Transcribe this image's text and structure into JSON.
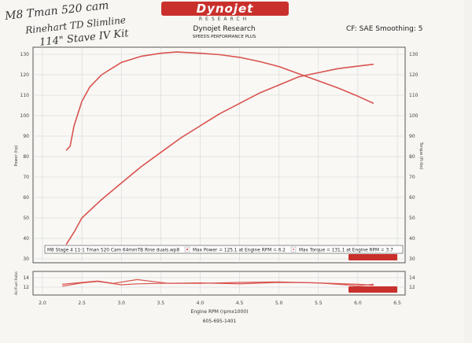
{
  "handwritten_notes": [
    "M8  Tman 520 cam",
    "Rinehart TD Slimline",
    "114\" Stave IV Kit"
  ],
  "header": {
    "logo": "Dynojet",
    "logo_sub": "RESEARCH",
    "title": "Dynojet Research",
    "subtitle": "SPEEDS PERFORMANCE PLUS",
    "correction": "CF: SAE Smoothing: 5"
  },
  "footer": {
    "phone": "605-695-1401"
  },
  "legend": {
    "run_file": "M8 Stage 4 11-1 Tman 520 Cam 64mmTB Rine duals.wp8",
    "max_power": "Max Power = 125.1 at Engine RPM = 6.2",
    "max_torque": "Max Torque = 131.1 at Engine RPM = 3.7"
  },
  "colors": {
    "curve": "#d9534f",
    "grid": "#cfcfcf",
    "frame": "#555555"
  },
  "chart_data": [
    {
      "type": "line",
      "xlabel": "Engine RPM (rpmx1000)",
      "ylabel": "Power (hp)",
      "y2label": "Torque (ft-lbs)",
      "xlim": [
        2.0,
        6.5
      ],
      "ylim": [
        30,
        130
      ],
      "xticks": [
        "2.0",
        "2.5",
        "3.0",
        "3.5",
        "4.0",
        "4.5",
        "5.0",
        "5.5",
        "6.0",
        "6.5"
      ],
      "yticks": [
        "30",
        "40",
        "50",
        "60",
        "70",
        "80",
        "90",
        "100",
        "110",
        "120",
        "130"
      ],
      "grid": true,
      "series": [
        {
          "key": "power",
          "x": [
            2.3,
            2.4,
            2.5,
            2.75,
            3.0,
            3.25,
            3.5,
            3.75,
            4.0,
            4.25,
            4.5,
            4.75,
            5.0,
            5.25,
            5.5,
            5.75,
            6.0,
            6.2
          ],
          "y": [
            37,
            43,
            50,
            59,
            67,
            75,
            82,
            89,
            95,
            101,
            106,
            111,
            115,
            119,
            121,
            123,
            124.2,
            125.1
          ]
        },
        {
          "key": "torque",
          "x": [
            2.3,
            2.35,
            2.4,
            2.5,
            2.6,
            2.75,
            3.0,
            3.25,
            3.5,
            3.7,
            4.0,
            4.25,
            4.5,
            4.75,
            5.0,
            5.25,
            5.5,
            5.75,
            6.0,
            6.2
          ],
          "y": [
            83,
            85,
            95,
            107,
            114,
            120,
            126,
            129,
            130.5,
            131.1,
            130.5,
            129.8,
            128.5,
            126.5,
            124,
            120.5,
            117,
            113.5,
            109.5,
            106
          ]
        }
      ]
    },
    {
      "type": "line",
      "ylabel": "Air/Fuel Ratio",
      "xlim": [
        2.0,
        6.5
      ],
      "ylim": [
        10,
        16
      ],
      "yticks": [
        "12",
        "14"
      ],
      "grid": true,
      "series": [
        {
          "key": "afr_run_1",
          "x": [
            2.25,
            2.5,
            2.7,
            3.0,
            3.2,
            3.5,
            4.0,
            4.5,
            5.0,
            5.5,
            6.0,
            6.2
          ],
          "y": [
            12.2,
            12.9,
            13.2,
            12.5,
            12.7,
            12.8,
            12.9,
            12.7,
            13.0,
            12.9,
            12.3,
            12.6
          ]
        },
        {
          "key": "afr_run_2",
          "x": [
            2.25,
            2.5,
            2.7,
            2.9,
            3.2,
            3.4,
            3.6,
            4.0,
            4.5,
            5.0,
            5.5,
            6.0,
            6.2
          ],
          "y": [
            12.6,
            13.0,
            13.3,
            12.8,
            13.6,
            13.2,
            12.8,
            12.8,
            13.0,
            13.1,
            12.9,
            12.6,
            12.4
          ]
        }
      ]
    }
  ]
}
